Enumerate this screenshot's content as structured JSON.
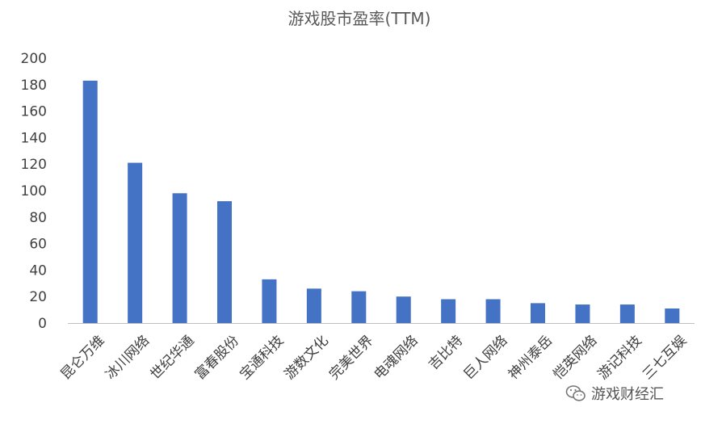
{
  "chart_data": {
    "type": "bar",
    "title": "游戏股市盈率(TTM)",
    "categories": [
      "昆仑万维",
      "冰川网络",
      "世纪华通",
      "富春股份",
      "宝通科技",
      "游数文化",
      "完美世界",
      "电魂网络",
      "吉比特",
      "巨人网络",
      "神州泰岳",
      "恺英网络",
      "游记科技",
      "三七互娱"
    ],
    "values": [
      183,
      121,
      98,
      92,
      33,
      26,
      24,
      20,
      18,
      18,
      15,
      14,
      14,
      11
    ],
    "ylim": [
      0,
      200
    ],
    "yticks": [
      0,
      20,
      40,
      60,
      80,
      100,
      120,
      140,
      160,
      180,
      200
    ],
    "xlabel": "",
    "ylabel": "",
    "grid": false,
    "legend": "none",
    "bar_color": "#4472C4"
  },
  "watermark": {
    "text": "游戏财经汇",
    "icon": "wechat-icon"
  }
}
